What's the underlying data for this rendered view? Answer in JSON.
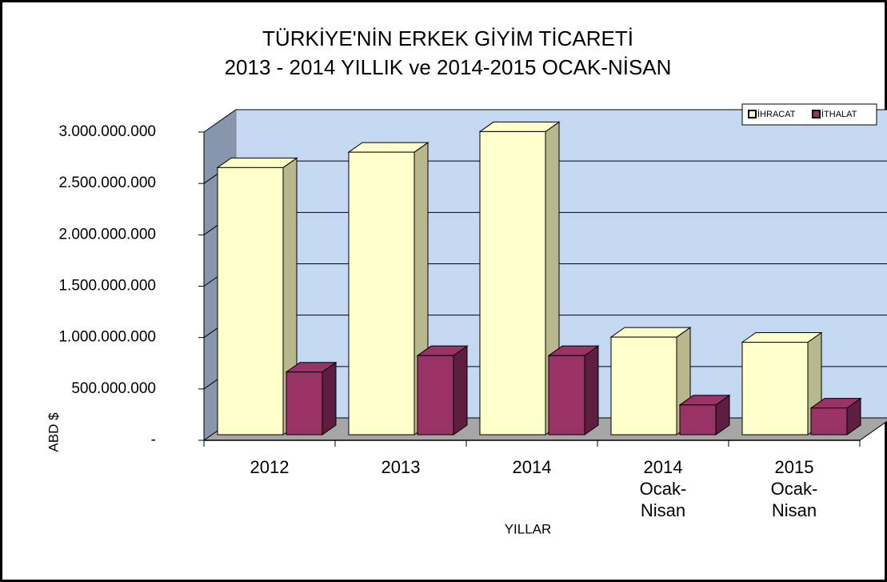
{
  "chart_data": {
    "type": "bar3d",
    "title": "TÜRKİYE'NİN ERKEK GİYİM TİCARETİ",
    "subtitle": "2013 - 2014 YILLIK ve 2014-2015 OCAK-NİSAN",
    "x_label": "YILLAR",
    "y_label": "ABD $",
    "categories": [
      "2012",
      "2013",
      "2014",
      "2014 Ocak-Nisan",
      "2015 Ocak-Nisan"
    ],
    "series": [
      {
        "name": "İHRACAT",
        "color": "#ffffcc",
        "side_color": "#b8b88c",
        "values": [
          2600000000,
          2750000000,
          2950000000,
          950000000,
          900000000
        ]
      },
      {
        "name": "İTHALAT",
        "color": "#993366",
        "side_color": "#5e1e40",
        "values": [
          610000000,
          770000000,
          770000000,
          290000000,
          260000000
        ]
      }
    ],
    "ylim": [
      0,
      3000000000
    ],
    "yticks": [
      {
        "value": 0,
        "label": "-"
      },
      {
        "value": 500000000,
        "label": "500.000.000"
      },
      {
        "value": 1000000000,
        "label": "1.000.000.000"
      },
      {
        "value": 1500000000,
        "label": "1.500.000.000"
      },
      {
        "value": 2000000000,
        "label": "2.000.000.000"
      },
      {
        "value": 2500000000,
        "label": "2.500.000.000"
      },
      {
        "value": 3000000000,
        "label": "3.000.000.000"
      }
    ],
    "grid": true,
    "legend": "top-right"
  }
}
